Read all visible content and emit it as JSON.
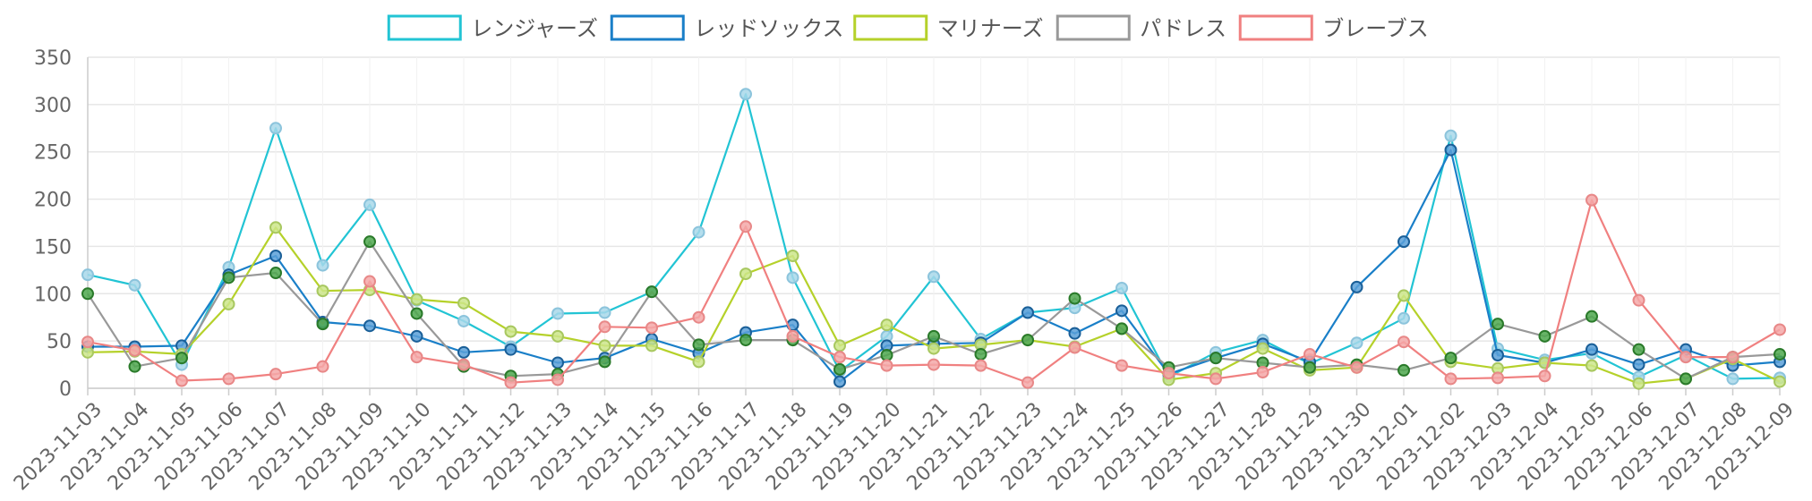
{
  "chart_data": {
    "type": "line",
    "title": "",
    "xlabel": "",
    "ylabel": "",
    "ylim": [
      0,
      350
    ],
    "yticks": [
      0,
      50,
      100,
      150,
      200,
      250,
      300,
      350
    ],
    "grid": true,
    "legend_position": "top",
    "categories": [
      "2023-11-03",
      "2023-11-04",
      "2023-11-05",
      "2023-11-06",
      "2023-11-07",
      "2023-11-08",
      "2023-11-09",
      "2023-11-10",
      "2023-11-11",
      "2023-11-12",
      "2023-11-13",
      "2023-11-14",
      "2023-11-15",
      "2023-11-16",
      "2023-11-17",
      "2023-11-18",
      "2023-11-19",
      "2023-11-20",
      "2023-11-21",
      "2023-11-22",
      "2023-11-23",
      "2023-11-24",
      "2023-11-25",
      "2023-11-26",
      "2023-11-27",
      "2023-11-28",
      "2023-11-29",
      "2023-11-30",
      "2023-12-01",
      "2023-12-02",
      "2023-12-03",
      "2023-12-04",
      "2023-12-05",
      "2023-12-06",
      "2023-12-07",
      "2023-12-08",
      "2023-12-09"
    ],
    "series": [
      {
        "name": "レンジャーズ",
        "color": "#22c4d4",
        "marker_fill": "#a8d8ea",
        "marker_stroke": "#8cc4dc",
        "values": [
          120,
          109,
          25,
          128,
          275,
          130,
          194,
          93,
          71,
          44,
          79,
          80,
          102,
          165,
          311,
          117,
          18,
          55,
          118,
          52,
          80,
          85,
          106,
          12,
          38,
          51,
          26,
          48,
          74,
          267,
          42,
          30,
          37,
          12,
          35,
          10,
          11
        ]
      },
      {
        "name": "レッドソックス",
        "color": "#1a7fc8",
        "marker_fill": "#5aa0d8",
        "marker_stroke": "#1a5f98",
        "values": [
          44,
          44,
          45,
          120,
          140,
          70,
          66,
          55,
          38,
          41,
          27,
          32,
          52,
          37,
          59,
          67,
          7,
          45,
          47,
          48,
          80,
          58,
          82,
          15,
          32,
          47,
          28,
          107,
          155,
          252,
          35,
          27,
          41,
          25,
          41,
          24,
          28
        ]
      },
      {
        "name": "マリナーズ",
        "color": "#b5d12a",
        "marker_fill": "#cde68a",
        "marker_stroke": "#a8c860",
        "values": [
          38,
          39,
          36,
          89,
          170,
          103,
          104,
          94,
          90,
          60,
          55,
          45,
          45,
          28,
          121,
          140,
          45,
          67,
          42,
          46,
          51,
          44,
          63,
          9,
          16,
          42,
          19,
          22,
          98,
          28,
          21,
          27,
          24,
          5,
          10,
          31,
          7
        ]
      },
      {
        "name": "パドレス",
        "color": "#999999",
        "marker_fill": "#4ea84e",
        "marker_stroke": "#2a7a2a",
        "values": [
          100,
          23,
          32,
          117,
          122,
          68,
          155,
          79,
          23,
          13,
          15,
          28,
          102,
          46,
          51,
          51,
          20,
          35,
          55,
          36,
          51,
          95,
          63,
          22,
          32,
          27,
          22,
          25,
          19,
          32,
          68,
          55,
          76,
          41,
          10,
          33,
          36
        ]
      },
      {
        "name": "ブレーブス",
        "color": "#f08080",
        "marker_fill": "#f4a8a8",
        "marker_stroke": "#e88888",
        "values": [
          49,
          40,
          8,
          10,
          15,
          23,
          113,
          33,
          25,
          6,
          9,
          65,
          64,
          75,
          171,
          55,
          33,
          24,
          25,
          24,
          6,
          43,
          24,
          16,
          10,
          17,
          36,
          22,
          49,
          10,
          11,
          13,
          199,
          93,
          33,
          33,
          62
        ]
      }
    ]
  }
}
